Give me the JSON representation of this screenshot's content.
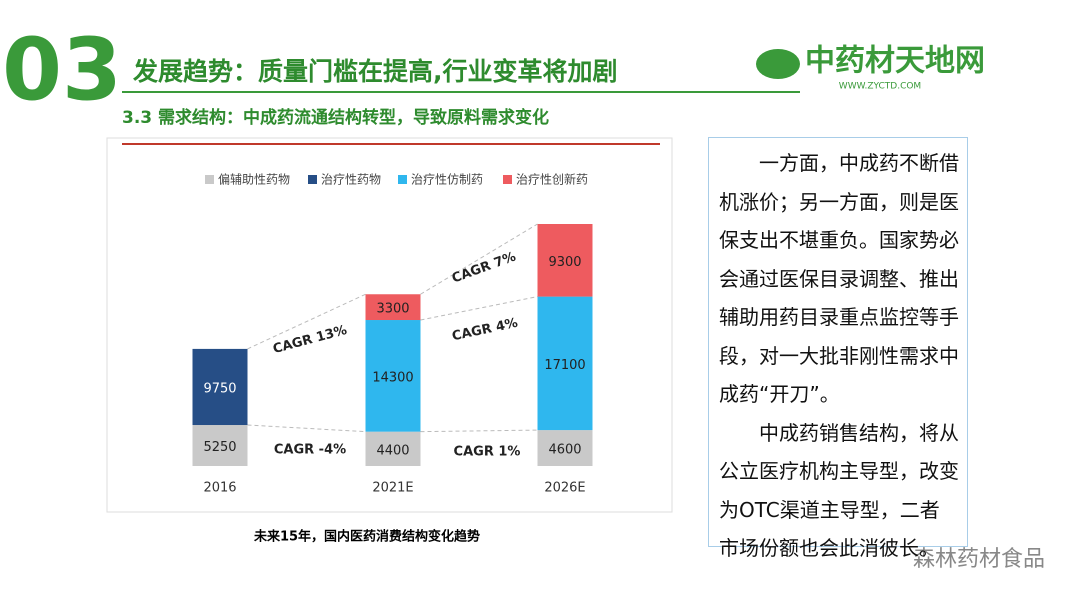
{
  "header": {
    "number": "03",
    "title": "发展趋势：质量门槛在提高,行业变革将加剧",
    "subtitle": "3.3  需求结构：中成药流通结构转型，导致原料需求变化"
  },
  "logo": {
    "name": "中药材天地网",
    "url": "WWW.ZYCTD.COM"
  },
  "chart_data": {
    "type": "stacked-bar",
    "categories": [
      "2016",
      "2021E",
      "2026E"
    ],
    "series": [
      {
        "name": "偏辅助性药物",
        "color": "#c9c9c9",
        "values": [
          5250,
          4400,
          4600
        ]
      },
      {
        "name": "治疗性药物",
        "color": "#264e86",
        "values": [
          9750,
          null,
          null
        ]
      },
      {
        "name": "治疗性仿制药",
        "color": "#2fb7ee",
        "values": [
          null,
          14300,
          17100
        ]
      },
      {
        "name": "治疗性创新药",
        "color": "#ee5b5f",
        "values": [
          null,
          3300,
          9300
        ]
      }
    ],
    "annotations": [
      "CAGR 13%",
      "CAGR -4%",
      "CAGR 7%",
      "CAGR 4%",
      "CAGR 1%"
    ],
    "caption": "未来15年，国内医药消费结构变化趋势"
  },
  "textbox": {
    "paragraphs": [
      "一方面，中成药不断借机涨价；另一方面，则是医保支出不堪重负。国家势必会通过医保目录调整、推出辅助用药目录重点监控等手段，对一大批非刚性需求中成药“开刀”。",
      "中成药销售结构，将从公立医疗机构主导型，改变为OTC渠道主导型，二者市场份额也会此消彼长。"
    ]
  },
  "watermark": "森林药材食品"
}
